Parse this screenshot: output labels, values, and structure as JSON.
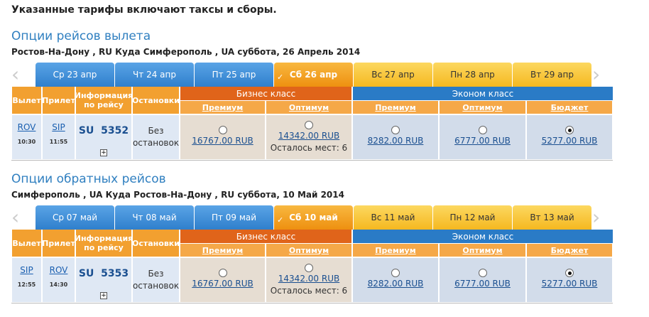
{
  "notice": "Указанные тарифы включают таксы и сборы.",
  "sections": [
    {
      "title": "Опции рейсов вылета",
      "route": "Ростов-На-Дону , RU Куда Симферополь , UA суббота, 26 Апрель 2014",
      "dates": [
        "Ср 23 апр",
        "Чт 24 апр",
        "Пт 25 апр",
        "Сб 26 апр",
        "Вс 27 апр",
        "Пн 28 апр",
        "Вт 29 апр"
      ],
      "headers": [
        "Вылет",
        "Прилет",
        "Информация по рейсу",
        "Остановки"
      ],
      "business": "Бизнес класс",
      "economy": "Эконом класс",
      "fares": [
        "Премиум",
        "Оптимум",
        "Премиум",
        "Оптимум",
        "Бюджет"
      ],
      "flight": {
        "from": "ROV",
        "dep": "10:30",
        "to": "SIP",
        "arr": "11:55",
        "number": "SU  5352",
        "stops": "Без остановок"
      },
      "prices": [
        "16767.00 RUB",
        "14342.00 RUB",
        "8282.00 RUB",
        "6777.00 RUB",
        "5277.00 RUB"
      ],
      "seats_left": "Осталось мест: 6"
    },
    {
      "title": "Опции обратных рейсов",
      "route": "Симферополь , UA Куда Ростов-На-Дону , RU суббота, 10 Май 2014",
      "dates": [
        "Ср 07 май",
        "Чт 08 май",
        "Пт 09 май",
        "Сб 10 май",
        "Вс 11 май",
        "Пн 12 май",
        "Вт 13 май"
      ],
      "headers": [
        "Вылет",
        "Прилет",
        "Информация по рейсу",
        "Остановки"
      ],
      "business": "Бизнес класс",
      "economy": "Эконом класс",
      "fares": [
        "Премиум",
        "Оптимум",
        "Премиум",
        "Оптимум",
        "Бюджет"
      ],
      "flight": {
        "from": "SIP",
        "dep": "12:55",
        "to": "ROV",
        "arr": "14:30",
        "number": "SU  5353",
        "stops": "Без остановок"
      },
      "prices": [
        "16767.00 RUB",
        "14342.00 RUB",
        "8282.00 RUB",
        "6777.00 RUB",
        "5277.00 RUB"
      ],
      "seats_left": "Осталось мест: 6"
    }
  ]
}
